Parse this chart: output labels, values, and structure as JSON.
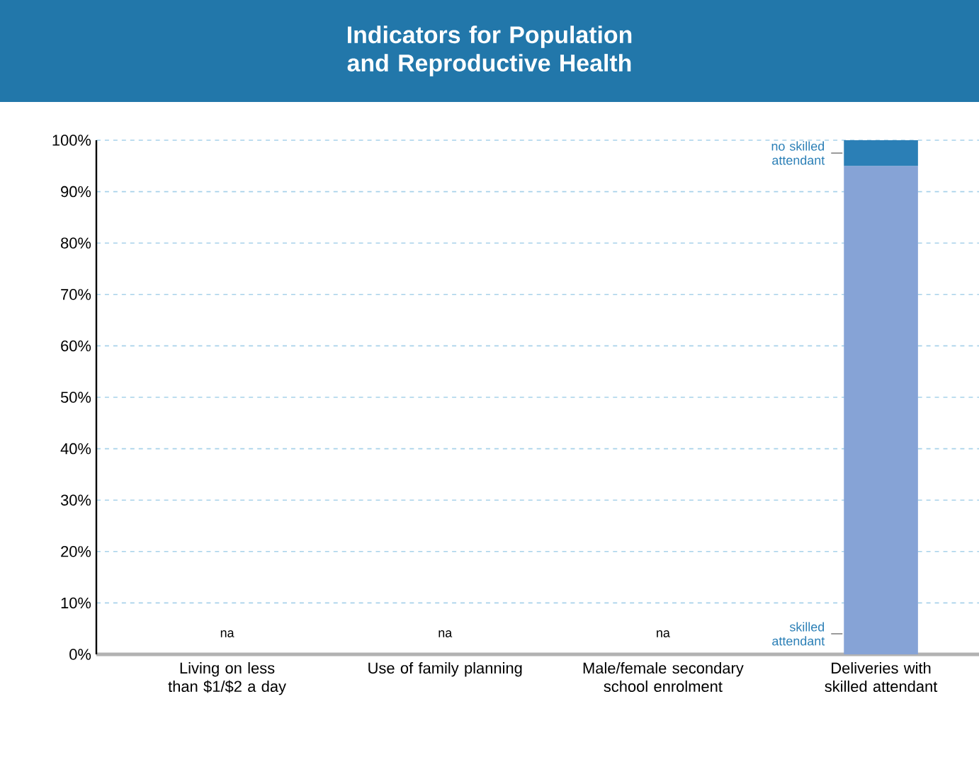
{
  "chart_data": {
    "type": "bar",
    "stacked": true,
    "title": "Indicators for Population and Reproductive Health",
    "categories": [
      "Living on less than $1/$2 a day",
      "Use of family planning",
      "Male/female secondary school enrolment",
      "Deliveries with skilled attendant"
    ],
    "series": [
      {
        "name": "skilled attendant",
        "color": "#86a3d6",
        "values": [
          null,
          null,
          null,
          95
        ],
        "value_labels": [
          "na",
          "na",
          "na",
          null
        ]
      },
      {
        "name": "no skilled attendant",
        "color": "#2b7fb6",
        "values": [
          null,
          null,
          null,
          5
        ]
      }
    ],
    "ylim": [
      0,
      100
    ],
    "yticks": [
      {
        "value": 0,
        "label": "0%"
      },
      {
        "value": 10,
        "label": "10%"
      },
      {
        "value": 20,
        "label": "20%"
      },
      {
        "value": 30,
        "label": "30%"
      },
      {
        "value": 40,
        "label": "40%"
      },
      {
        "value": 50,
        "label": "50%"
      },
      {
        "value": 60,
        "label": "60%"
      },
      {
        "value": 70,
        "label": "70%"
      },
      {
        "value": 80,
        "label": "80%"
      },
      {
        "value": 90,
        "label": "90%"
      },
      {
        "value": 100,
        "label": "100%"
      }
    ],
    "grid": "y"
  }
}
